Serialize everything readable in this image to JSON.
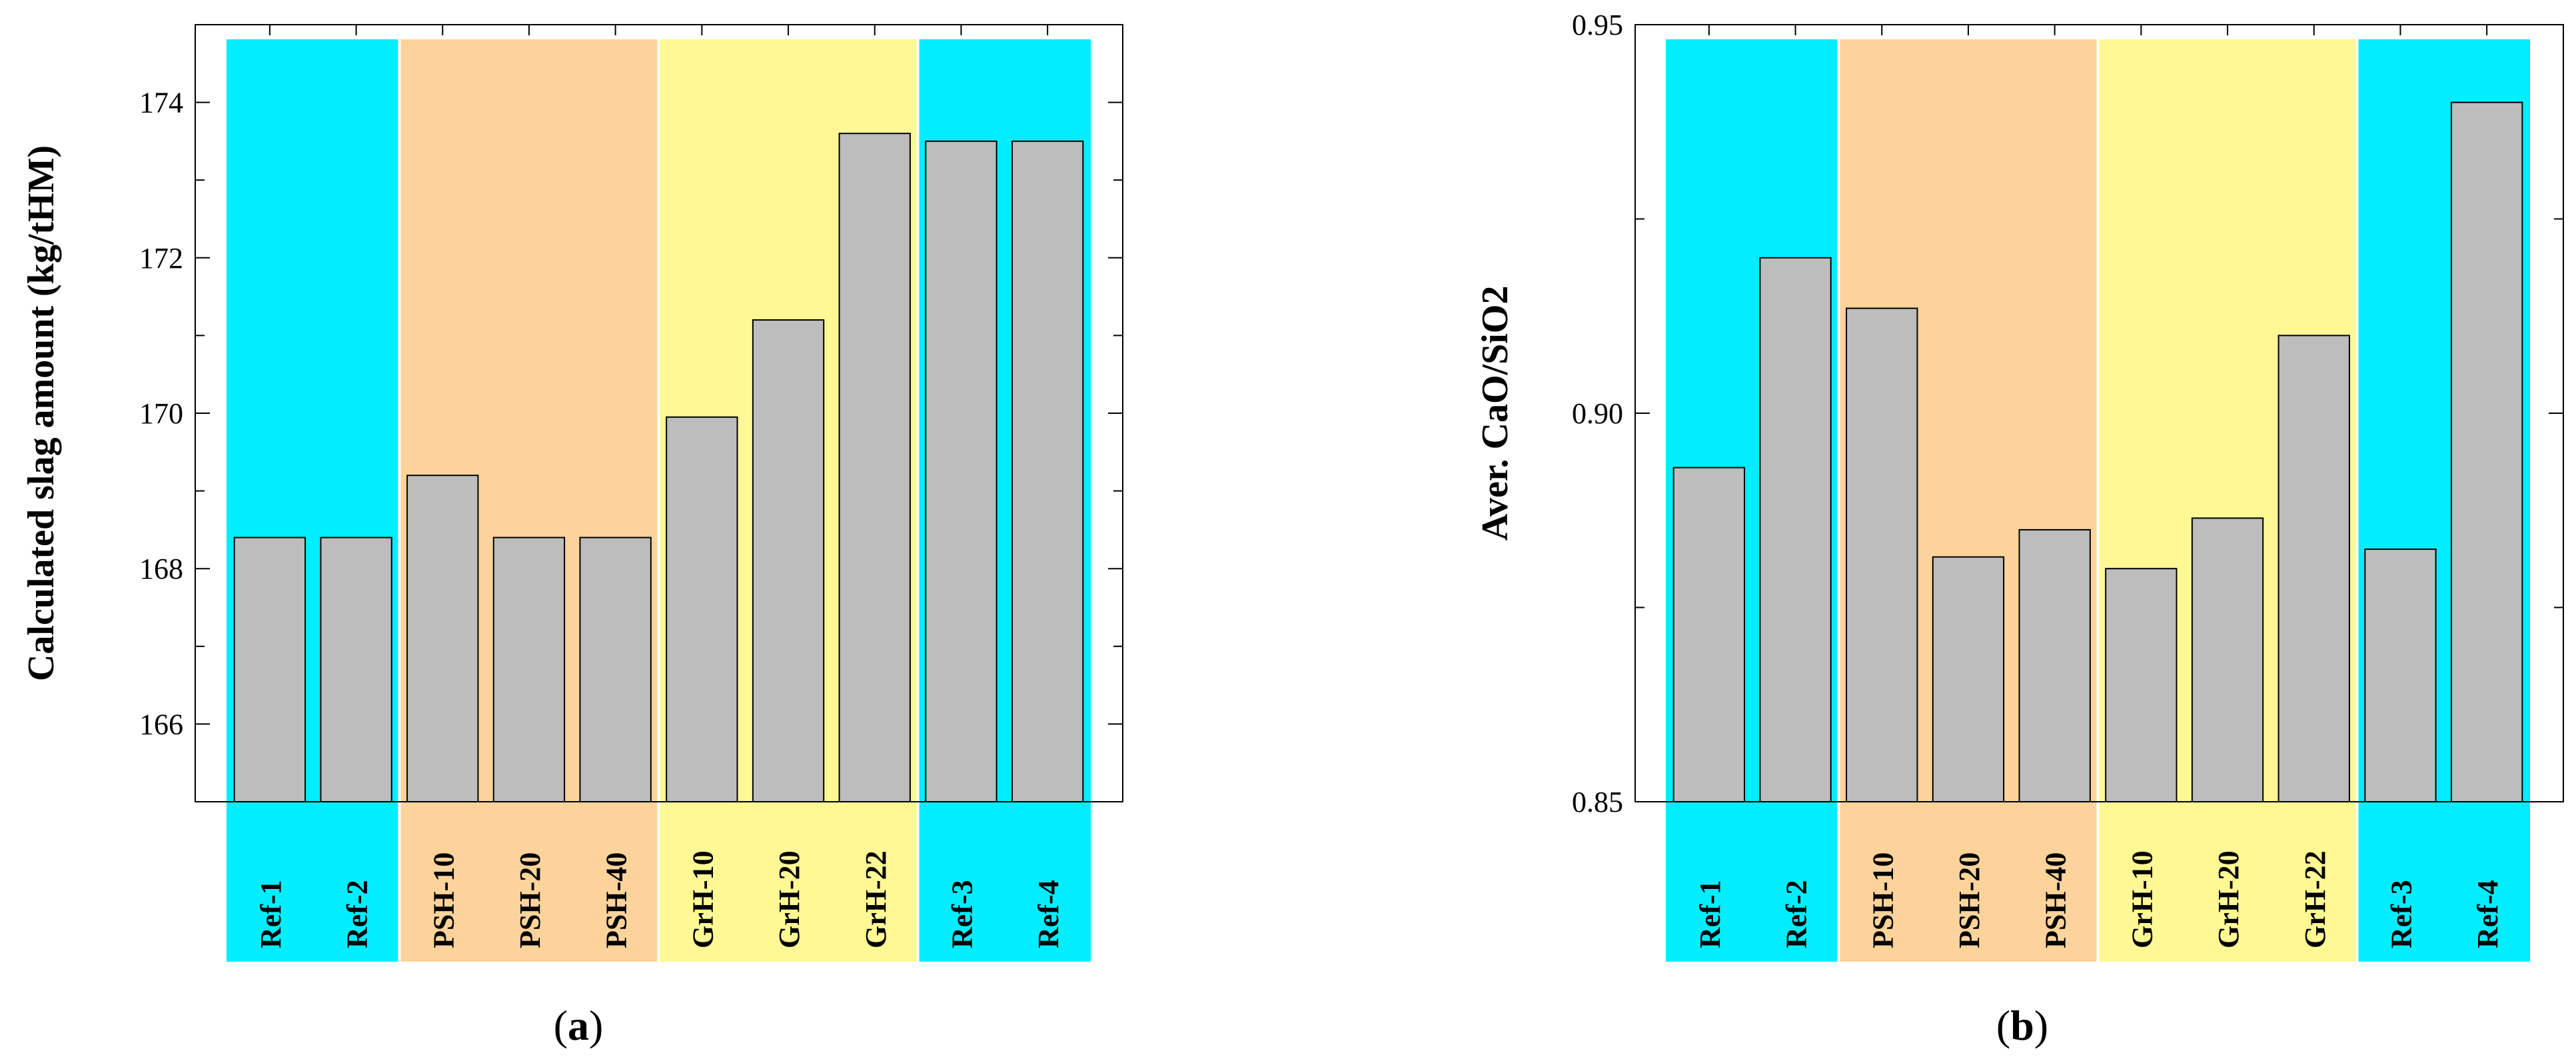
{
  "chart_data": [
    {
      "type": "bar",
      "panel_label": "a",
      "title": "",
      "xlabel": "",
      "ylabel": "Calculated slag amount (kg/tHM)",
      "ylim": [
        165,
        175
      ],
      "yticks": [
        166,
        168,
        170,
        172,
        174
      ],
      "ytick_labels": [
        "166",
        "168",
        "170",
        "172",
        "174"
      ],
      "grid": false,
      "categories": [
        "Ref-1",
        "Ref-2",
        "PSH-10",
        "PSH-20",
        "PSH-40",
        "GrH-10",
        "GrH-20",
        "GrH-22",
        "Ref-3",
        "Ref-4"
      ],
      "values": [
        168.4,
        168.4,
        169.2,
        168.4,
        168.4,
        169.95,
        171.2,
        173.6,
        173.5,
        173.5
      ],
      "groups": [
        {
          "name": "Ref",
          "start": 0,
          "end": 1,
          "color": "#00eeff"
        },
        {
          "name": "PSH",
          "start": 2,
          "end": 4,
          "color": "#fcd39a"
        },
        {
          "name": "GrH",
          "start": 5,
          "end": 7,
          "color": "#fff895"
        },
        {
          "name": "Ref",
          "start": 8,
          "end": 9,
          "color": "#00eeff"
        }
      ],
      "bar_color": "#bdbdbd"
    },
    {
      "type": "bar",
      "panel_label": "b",
      "title": "",
      "xlabel": "",
      "ylabel": "Aver. CaO/SiO2",
      "ylim": [
        0.85,
        0.95
      ],
      "yticks": [
        0.85,
        0.9,
        0.95
      ],
      "ytick_labels": [
        "0.85",
        "0.90",
        "0.95"
      ],
      "grid": false,
      "categories": [
        "Ref-1",
        "Ref-2",
        "PSH-10",
        "PSH-20",
        "PSH-40",
        "GrH-10",
        "GrH-20",
        "GrH-22",
        "Ref-3",
        "Ref-4"
      ],
      "values": [
        0.893,
        0.92,
        0.9135,
        0.8815,
        0.885,
        0.88,
        0.8865,
        0.91,
        0.8825,
        0.94
      ],
      "groups": [
        {
          "name": "Ref",
          "start": 0,
          "end": 1,
          "color": "#00eeff"
        },
        {
          "name": "PSH",
          "start": 2,
          "end": 4,
          "color": "#fcd39a"
        },
        {
          "name": "GrH",
          "start": 5,
          "end": 7,
          "color": "#fff895"
        },
        {
          "name": "Ref",
          "start": 8,
          "end": 9,
          "color": "#00eeff"
        }
      ],
      "bar_color": "#bdbdbd"
    }
  ]
}
